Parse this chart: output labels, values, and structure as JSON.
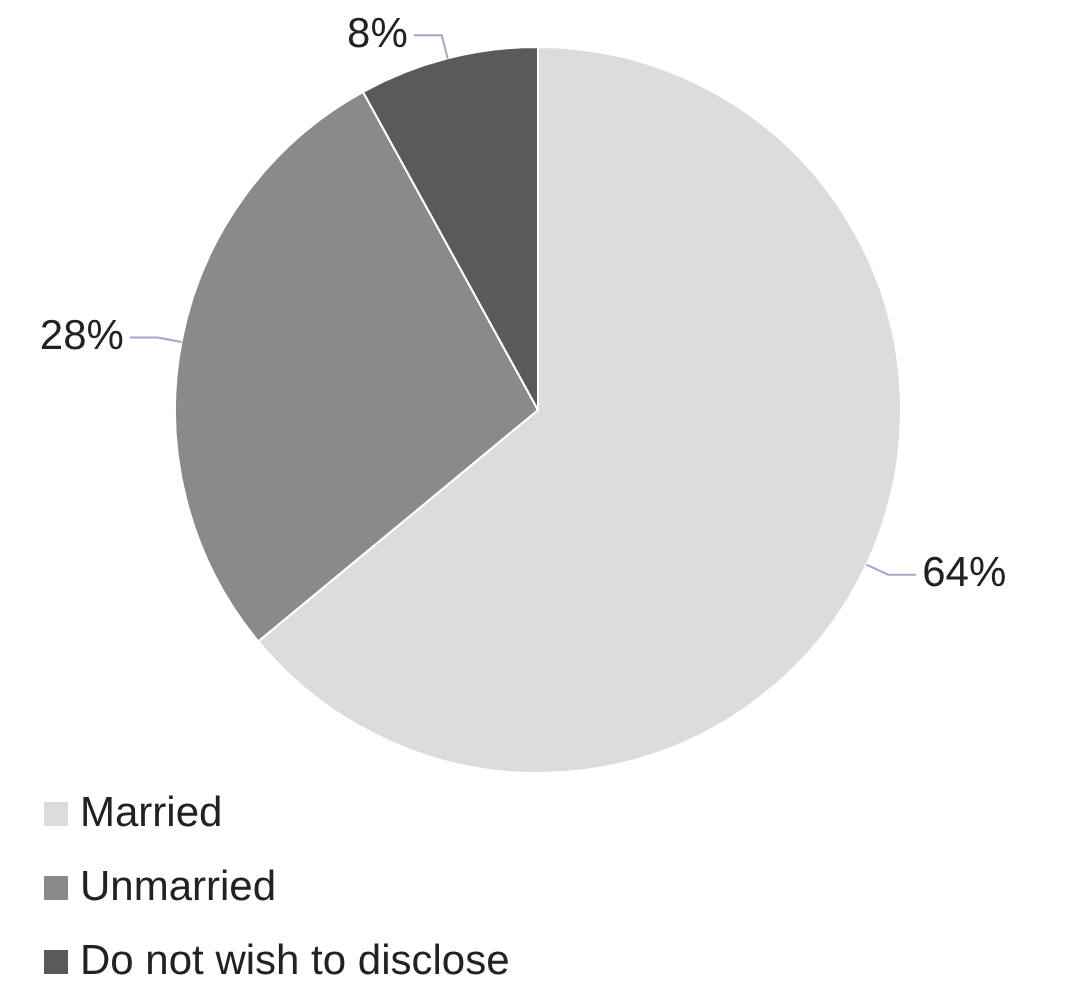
{
  "chart_data": {
    "type": "pie",
    "categories": [
      "Married",
      "Unmarried",
      "Do not wish to disclose"
    ],
    "values": [
      64,
      28,
      8
    ],
    "colors": [
      "#dcdcdc",
      "#8a8a8a",
      "#5a5a5a"
    ],
    "value_labels": [
      "64%",
      "28%",
      "8%"
    ],
    "legend": "bottom"
  }
}
